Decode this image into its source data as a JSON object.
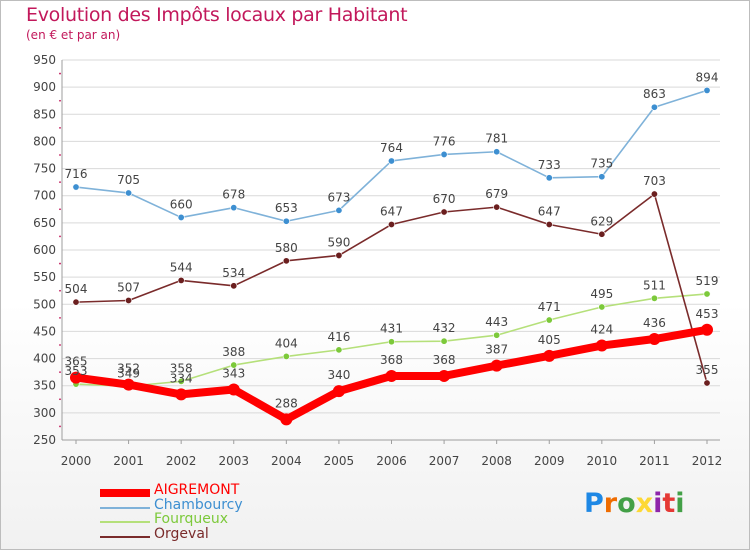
{
  "header": {
    "title": "Evolution des Impôts locaux par Habitant",
    "subtitle": "(en € et par an)"
  },
  "logo": {
    "text": "Proxiti",
    "letters": [
      "P",
      "r",
      "o",
      "x",
      "i",
      "t",
      "i"
    ],
    "colors": [
      "#1e88e5",
      "#ef6c00",
      "#43a047",
      "#fdd835",
      "#8e24aa",
      "#e53935",
      "#43a047"
    ]
  },
  "colors": {
    "title": "#c2185b",
    "tick_labels": "#444444",
    "grid": "#d9d9d9"
  },
  "chart_data": {
    "type": "line",
    "title": "Evolution des Impôts locaux par Habitant",
    "subtitle": "(en € et par an)",
    "xlabel": "",
    "ylabel": "",
    "x": [
      2000,
      2001,
      2002,
      2003,
      2004,
      2005,
      2006,
      2007,
      2008,
      2009,
      2010,
      2011,
      2012
    ],
    "ylim": [
      250,
      950
    ],
    "yticks": [
      250,
      300,
      350,
      400,
      450,
      500,
      550,
      600,
      650,
      700,
      750,
      800,
      850,
      900,
      950
    ],
    "grid": "horizontal",
    "legend_position": "bottom-left",
    "series": [
      {
        "name": "AIGREMONT",
        "color": "#ff0000",
        "marker_color": "#ff0000",
        "thick": true,
        "values": [
          365,
          352,
          334,
          343,
          288,
          340,
          368,
          368,
          387,
          405,
          424,
          436,
          453
        ],
        "value_labels": [
          "365",
          "352",
          "334",
          "343",
          "288",
          "340",
          "368",
          "368",
          "387",
          "405",
          "424",
          "436",
          "453"
        ]
      },
      {
        "name": "Chambourcy",
        "color": "#7fb2d9",
        "marker_color": "#3d8fd1",
        "thick": false,
        "values": [
          716,
          705,
          660,
          678,
          653,
          673,
          764,
          776,
          781,
          733,
          735,
          863,
          894
        ],
        "value_labels": [
          "716",
          "705",
          "660",
          "678",
          "653",
          "673",
          "764",
          "776",
          "781",
          "733",
          "735",
          "863",
          "894"
        ]
      },
      {
        "name": "Fourqueux",
        "color": "#b5e07a",
        "marker_color": "#7cc93a",
        "thick": false,
        "values": [
          353,
          349,
          358,
          388,
          404,
          416,
          431,
          432,
          443,
          471,
          495,
          511,
          519
        ],
        "value_labels": [
          "353",
          "349",
          "358",
          "388",
          "404",
          "416",
          "431",
          "432",
          "443",
          "471",
          "495",
          "511",
          "519"
        ]
      },
      {
        "name": "Orgeval",
        "color": "#7a2b2b",
        "marker_color": "#6b1f1f",
        "thick": false,
        "values": [
          504,
          507,
          544,
          534,
          580,
          590,
          647,
          670,
          679,
          647,
          629,
          703,
          355
        ],
        "value_labels": [
          "504",
          "507",
          "544",
          "534",
          "580",
          "590",
          "647",
          "670",
          "679",
          "647",
          "629",
          "703",
          "355"
        ]
      }
    ]
  }
}
